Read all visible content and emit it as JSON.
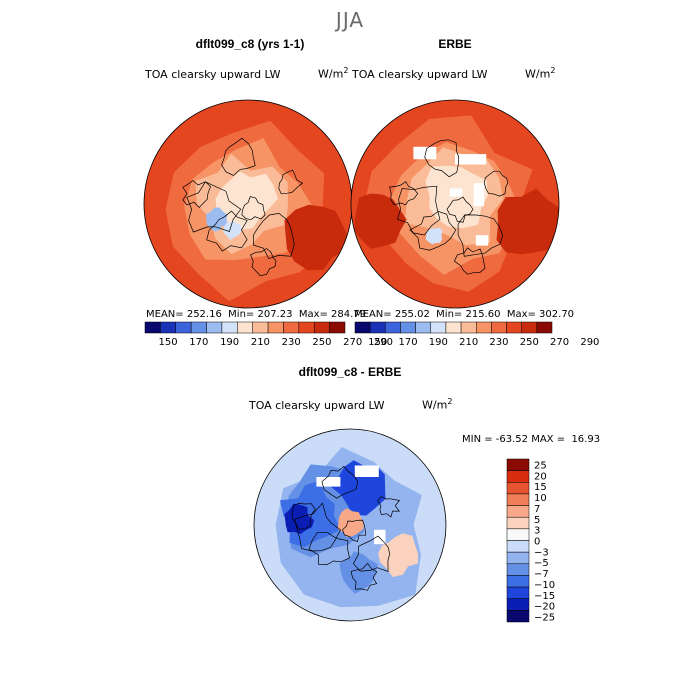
{
  "figure_title": "JJA",
  "colors": {
    "abs_scale": [
      "#08086e",
      "#1a32b8",
      "#3c64dc",
      "#6490e6",
      "#9cbcf0",
      "#d2e2f8",
      "#fde4d0",
      "#fabc98",
      "#f69466",
      "#f06a40",
      "#e44620",
      "#c82a0c",
      "#8c0a04"
    ],
    "diff_scale": [
      "#08086e",
      "#0a1eb4",
      "#1e46dc",
      "#3c6ee6",
      "#6490e6",
      "#94b4f0",
      "#cadcf8",
      "#f8f8f8",
      "#fad2be",
      "#f6a888",
      "#f07e58",
      "#e85430",
      "#d82c10",
      "#8c0a04"
    ],
    "outline": "#000000",
    "missing": "#ffffff"
  },
  "panels": {
    "model": {
      "title": "dflt099_c8 (yrs 1-1)",
      "variable": "TOA clearsky upward LW",
      "units": "W/m",
      "units_exp": "2",
      "stats": "MEAN= 252.16  Min= 207.23  Max= 284.79"
    },
    "obs": {
      "title": "ERBE",
      "variable": "TOA clearsky upward LW",
      "units": "W/m",
      "units_exp": "2",
      "stats": "MEAN= 255.02  Min= 215.60  Max= 302.70"
    },
    "diff": {
      "title": "dflt099_c8 - ERBE",
      "variable": "TOA clearsky upward LW",
      "units": "W/m",
      "units_exp": "2",
      "minmax": "MIN = -63.52 MAX =  16.93"
    }
  },
  "chart_data": [
    {
      "type": "heatmap",
      "title": "dflt099_c8 (yrs 1-1)",
      "projection": "north-polar-stereographic",
      "variable": "TOA clearsky upward LW",
      "units": "W/m2",
      "mean": 252.16,
      "min": 207.23,
      "max": 284.79,
      "colorbar_ticks": [
        "150",
        "170",
        "190",
        "210",
        "230",
        "250",
        "270",
        "290"
      ]
    },
    {
      "type": "heatmap",
      "title": "ERBE",
      "projection": "north-polar-stereographic",
      "variable": "TOA clearsky upward LW",
      "units": "W/m2",
      "mean": 255.02,
      "min": 215.6,
      "max": 302.7,
      "colorbar_ticks": [
        "150",
        "170",
        "190",
        "210",
        "230",
        "250",
        "270",
        "290"
      ]
    },
    {
      "type": "heatmap",
      "title": "dflt099_c8 - ERBE",
      "projection": "north-polar-stereographic",
      "variable": "TOA clearsky upward LW",
      "units": "W/m2",
      "min": -63.52,
      "max": 16.93,
      "colorbar_ticks": [
        "25",
        "20",
        "15",
        "10",
        "7",
        "5",
        "3",
        "0",
        "−3",
        "−5",
        "−7",
        "−10",
        "−15",
        "−20",
        "−25"
      ]
    }
  ]
}
